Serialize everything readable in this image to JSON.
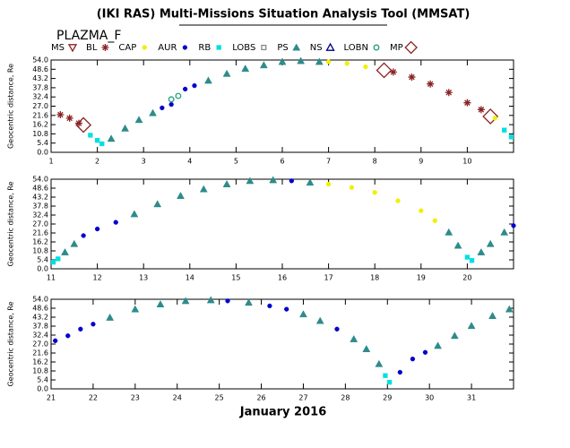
{
  "title": "(IKI RAS) Multi-Missions Situation Analysis Tool (MMSAT)",
  "instrument": "PLAZMA_F",
  "xlabel": "January 2016",
  "legend": [
    {
      "name": "MS",
      "color": "#8b2323",
      "marker": "triangle-down-open"
    },
    {
      "name": "BL",
      "color": "#8b2323",
      "marker": "star"
    },
    {
      "name": "CAP",
      "color": "#f0f000",
      "marker": "dot"
    },
    {
      "name": "AUR",
      "color": "#0000d0",
      "marker": "dot"
    },
    {
      "name": "RB",
      "color": "#00e0e0",
      "marker": "square"
    },
    {
      "name": "LOBS",
      "color": "#888888",
      "marker": "square-open"
    },
    {
      "name": "PS",
      "color": "#2e8b8b",
      "marker": "triangle"
    },
    {
      "name": "NS",
      "color": "#000080",
      "marker": "triangle-open"
    },
    {
      "name": "LOBN",
      "color": "#20a080",
      "marker": "circle-open"
    },
    {
      "name": "MP",
      "color": "#8b2323",
      "marker": "diamond-open"
    }
  ],
  "chart_data": [
    {
      "type": "scatter",
      "ylabel": "Geocentric distance, Re",
      "xlim": [
        1,
        11
      ],
      "xticks": [
        1,
        2,
        3,
        4,
        5,
        6,
        7,
        8,
        9,
        10
      ],
      "ylim": [
        0,
        54
      ],
      "yticks": [
        {
          "value": 0,
          "label": "0.0"
        },
        5.4,
        10.8,
        16.2,
        21.6,
        {
          "value": 27,
          "label": "27.0"
        },
        32.4,
        37.8,
        43.2,
        48.6,
        {
          "value": 54,
          "label": "54.0"
        }
      ],
      "series": [
        {
          "name": "BL",
          "x": [
            1.2,
            1.4,
            1.6
          ],
          "values": [
            22,
            20,
            17
          ]
        },
        {
          "name": "MP",
          "x": [
            1.7
          ],
          "values": [
            16
          ]
        },
        {
          "name": "RB",
          "x": [
            1.85,
            2.0,
            2.1
          ],
          "values": [
            10,
            7,
            5
          ]
        },
        {
          "name": "PS",
          "x": [
            2.3,
            2.6,
            2.9,
            3.2
          ],
          "values": [
            8,
            14,
            19,
            23
          ]
        },
        {
          "name": "AUR",
          "x": [
            3.4,
            3.6
          ],
          "values": [
            26,
            28
          ]
        },
        {
          "name": "LOBN",
          "x": [
            3.6,
            3.75
          ],
          "values": [
            31,
            33
          ]
        },
        {
          "name": "AUR",
          "x": [
            3.9,
            4.1
          ],
          "values": [
            37,
            39
          ]
        },
        {
          "name": "PS",
          "x": [
            4.4,
            4.8,
            5.2,
            5.6,
            6.0,
            6.4,
            6.8
          ],
          "values": [
            42,
            46,
            49,
            51,
            53,
            53.5,
            53
          ]
        },
        {
          "name": "CAP",
          "x": [
            7.0,
            7.4,
            7.8
          ],
          "values": [
            53,
            52,
            50
          ]
        },
        {
          "name": "MP",
          "x": [
            8.2
          ],
          "values": [
            48
          ]
        },
        {
          "name": "BL",
          "x": [
            8.4,
            8.8,
            9.2,
            9.6,
            10.0,
            10.3
          ],
          "values": [
            47,
            44,
            40,
            35,
            29,
            25
          ]
        },
        {
          "name": "MP",
          "x": [
            10.5
          ],
          "values": [
            21
          ]
        },
        {
          "name": "CAP",
          "x": [
            10.6
          ],
          "values": [
            20
          ]
        },
        {
          "name": "RB",
          "x": [
            10.8,
            10.95
          ],
          "values": [
            13,
            9
          ]
        }
      ]
    },
    {
      "type": "scatter",
      "ylabel": "Geocentric distance, Re",
      "xlim": [
        11,
        21
      ],
      "xticks": [
        11,
        12,
        13,
        14,
        15,
        16,
        17,
        18,
        19,
        20
      ],
      "ylim": [
        0,
        54
      ],
      "yticks": [
        {
          "value": 0,
          "label": "0.0"
        },
        5.4,
        10.8,
        16.2,
        21.6,
        {
          "value": 27,
          "label": "27.0"
        },
        32.4,
        37.8,
        43.2,
        48.6,
        {
          "value": 54,
          "label": "54.0"
        }
      ],
      "series": [
        {
          "name": "RB",
          "x": [
            11.05,
            11.15
          ],
          "values": [
            4,
            6
          ]
        },
        {
          "name": "PS",
          "x": [
            11.3,
            11.5
          ],
          "values": [
            10,
            15
          ]
        },
        {
          "name": "AUR",
          "x": [
            11.7,
            12.0,
            12.4
          ],
          "values": [
            20,
            24,
            28
          ]
        },
        {
          "name": "PS",
          "x": [
            12.8,
            13.3,
            13.8,
            14.3,
            14.8,
            15.3,
            15.8
          ],
          "values": [
            33,
            39,
            44,
            48,
            51,
            53,
            53.5
          ]
        },
        {
          "name": "AUR",
          "x": [
            16.2
          ],
          "values": [
            53
          ]
        },
        {
          "name": "PS",
          "x": [
            16.6
          ],
          "values": [
            52
          ]
        },
        {
          "name": "CAP",
          "x": [
            17.0,
            17.5,
            18.0,
            18.5,
            19.0,
            19.3
          ],
          "values": [
            51,
            49,
            46,
            41,
            35,
            29
          ]
        },
        {
          "name": "PS",
          "x": [
            19.6,
            19.8
          ],
          "values": [
            22,
            14
          ]
        },
        {
          "name": "RB",
          "x": [
            20.0,
            20.1
          ],
          "values": [
            7,
            5
          ]
        },
        {
          "name": "PS",
          "x": [
            20.3,
            20.5,
            20.8
          ],
          "values": [
            10,
            15,
            22
          ]
        },
        {
          "name": "AUR",
          "x": [
            21.0
          ],
          "values": [
            26
          ]
        }
      ]
    },
    {
      "type": "scatter",
      "ylabel": "Geocentric distance, Re",
      "xlim": [
        21,
        32
      ],
      "xticks": [
        21,
        22,
        23,
        24,
        25,
        26,
        27,
        28,
        29,
        30,
        31
      ],
      "ylim": [
        0,
        54
      ],
      "yticks": [
        {
          "value": 0,
          "label": "0.0"
        },
        5.4,
        10.8,
        16.2,
        21.6,
        {
          "value": 27,
          "label": "27.0"
        },
        32.4,
        37.8,
        43.2,
        48.6,
        {
          "value": 54,
          "label": "54.0"
        }
      ],
      "series": [
        {
          "name": "AUR",
          "x": [
            21.1,
            21.4,
            21.7,
            22.0
          ],
          "values": [
            29,
            32,
            36,
            39
          ]
        },
        {
          "name": "PS",
          "x": [
            22.4,
            23.0,
            23.6,
            24.2,
            24.8
          ],
          "values": [
            43,
            48,
            51,
            53,
            53.5
          ]
        },
        {
          "name": "AUR",
          "x": [
            25.2
          ],
          "values": [
            53
          ]
        },
        {
          "name": "PS",
          "x": [
            25.7
          ],
          "values": [
            52
          ]
        },
        {
          "name": "AUR",
          "x": [
            26.2,
            26.6
          ],
          "values": [
            50,
            48
          ]
        },
        {
          "name": "PS",
          "x": [
            27.0,
            27.4
          ],
          "values": [
            45,
            41
          ]
        },
        {
          "name": "AUR",
          "x": [
            27.8
          ],
          "values": [
            36
          ]
        },
        {
          "name": "PS",
          "x": [
            28.2,
            28.5,
            28.8
          ],
          "values": [
            30,
            24,
            15
          ]
        },
        {
          "name": "RB",
          "x": [
            28.95,
            29.05
          ],
          "values": [
            8,
            4
          ]
        },
        {
          "name": "AUR",
          "x": [
            29.3,
            29.6,
            29.9
          ],
          "values": [
            10,
            18,
            22
          ]
        },
        {
          "name": "PS",
          "x": [
            30.2,
            30.6,
            31.0,
            31.5,
            31.9
          ],
          "values": [
            26,
            32,
            38,
            44,
            48
          ]
        }
      ]
    }
  ]
}
